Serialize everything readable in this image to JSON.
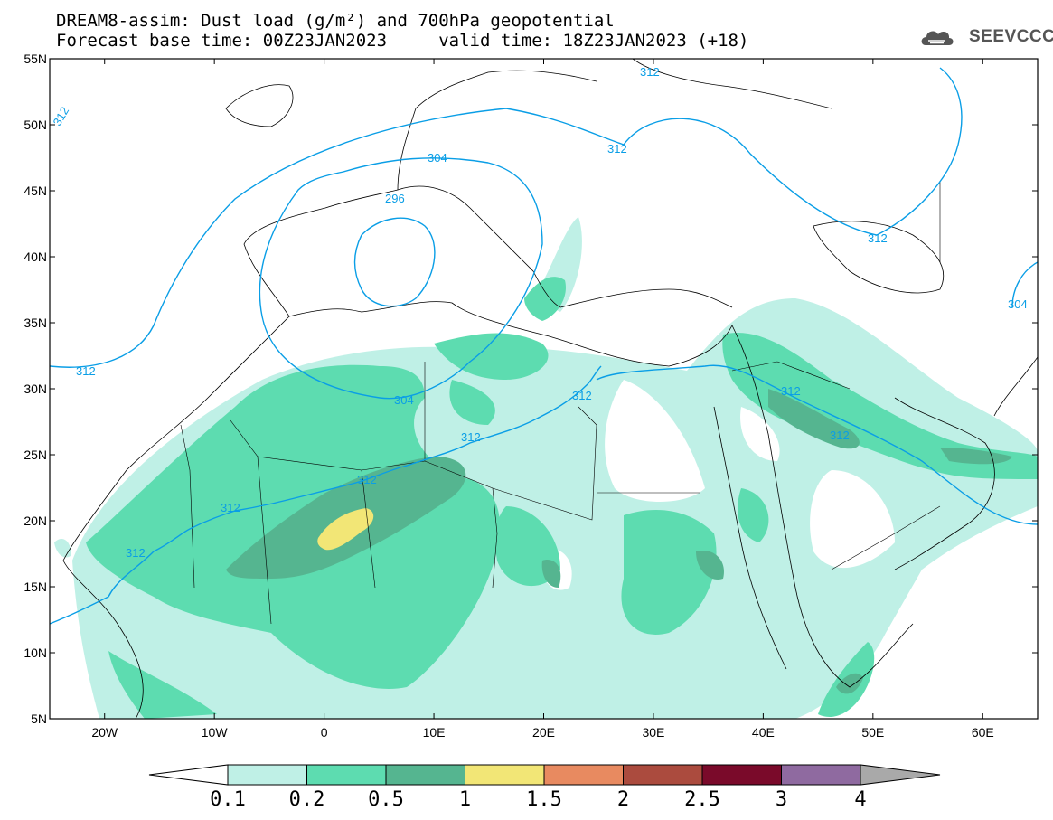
{
  "header": {
    "title_line1": "DREAM8-assim: Dust load (g/m²) and 700hPa geopotential",
    "title_line2": "Forecast base time: 00Z23JAN2023     valid time: 18Z23JAN2023 (+18)",
    "logo_text": "SEEVCCC"
  },
  "map": {
    "lon_range": [
      -25,
      65
    ],
    "lat_range": [
      5,
      55
    ],
    "lat_labels": [
      "55N",
      "50N",
      "45N",
      "40N",
      "35N",
      "30N",
      "25N",
      "20N",
      "15N",
      "10N",
      "5N"
    ],
    "lon_labels": [
      "20W",
      "10W",
      "0",
      "10E",
      "20E",
      "30E",
      "40E",
      "50E",
      "60E"
    ],
    "contour_labels": [
      "312",
      "312",
      "304",
      "296",
      "312",
      "312",
      "304",
      "312",
      "312",
      "312",
      "312",
      "312",
      "312",
      "304",
      "312",
      "312"
    ]
  },
  "colorbar": {
    "labels": [
      "0.1",
      "0.2",
      "0.5",
      "1",
      "1.5",
      "2",
      "2.5",
      "3",
      "4"
    ],
    "colors": [
      "#bff0e6",
      "#5ddcb0",
      "#55b590",
      "#f2e676",
      "#e88a60",
      "#ab4b3e",
      "#7a0a2a",
      "#8f6aa0",
      "#a9a9a9"
    ]
  },
  "colors": {
    "dust_low": "#bff0e6",
    "dust_mid": "#5ddcb0",
    "dust_high": "#55b590",
    "dust_max": "#f2e676",
    "contour": "#0a9ee6"
  }
}
